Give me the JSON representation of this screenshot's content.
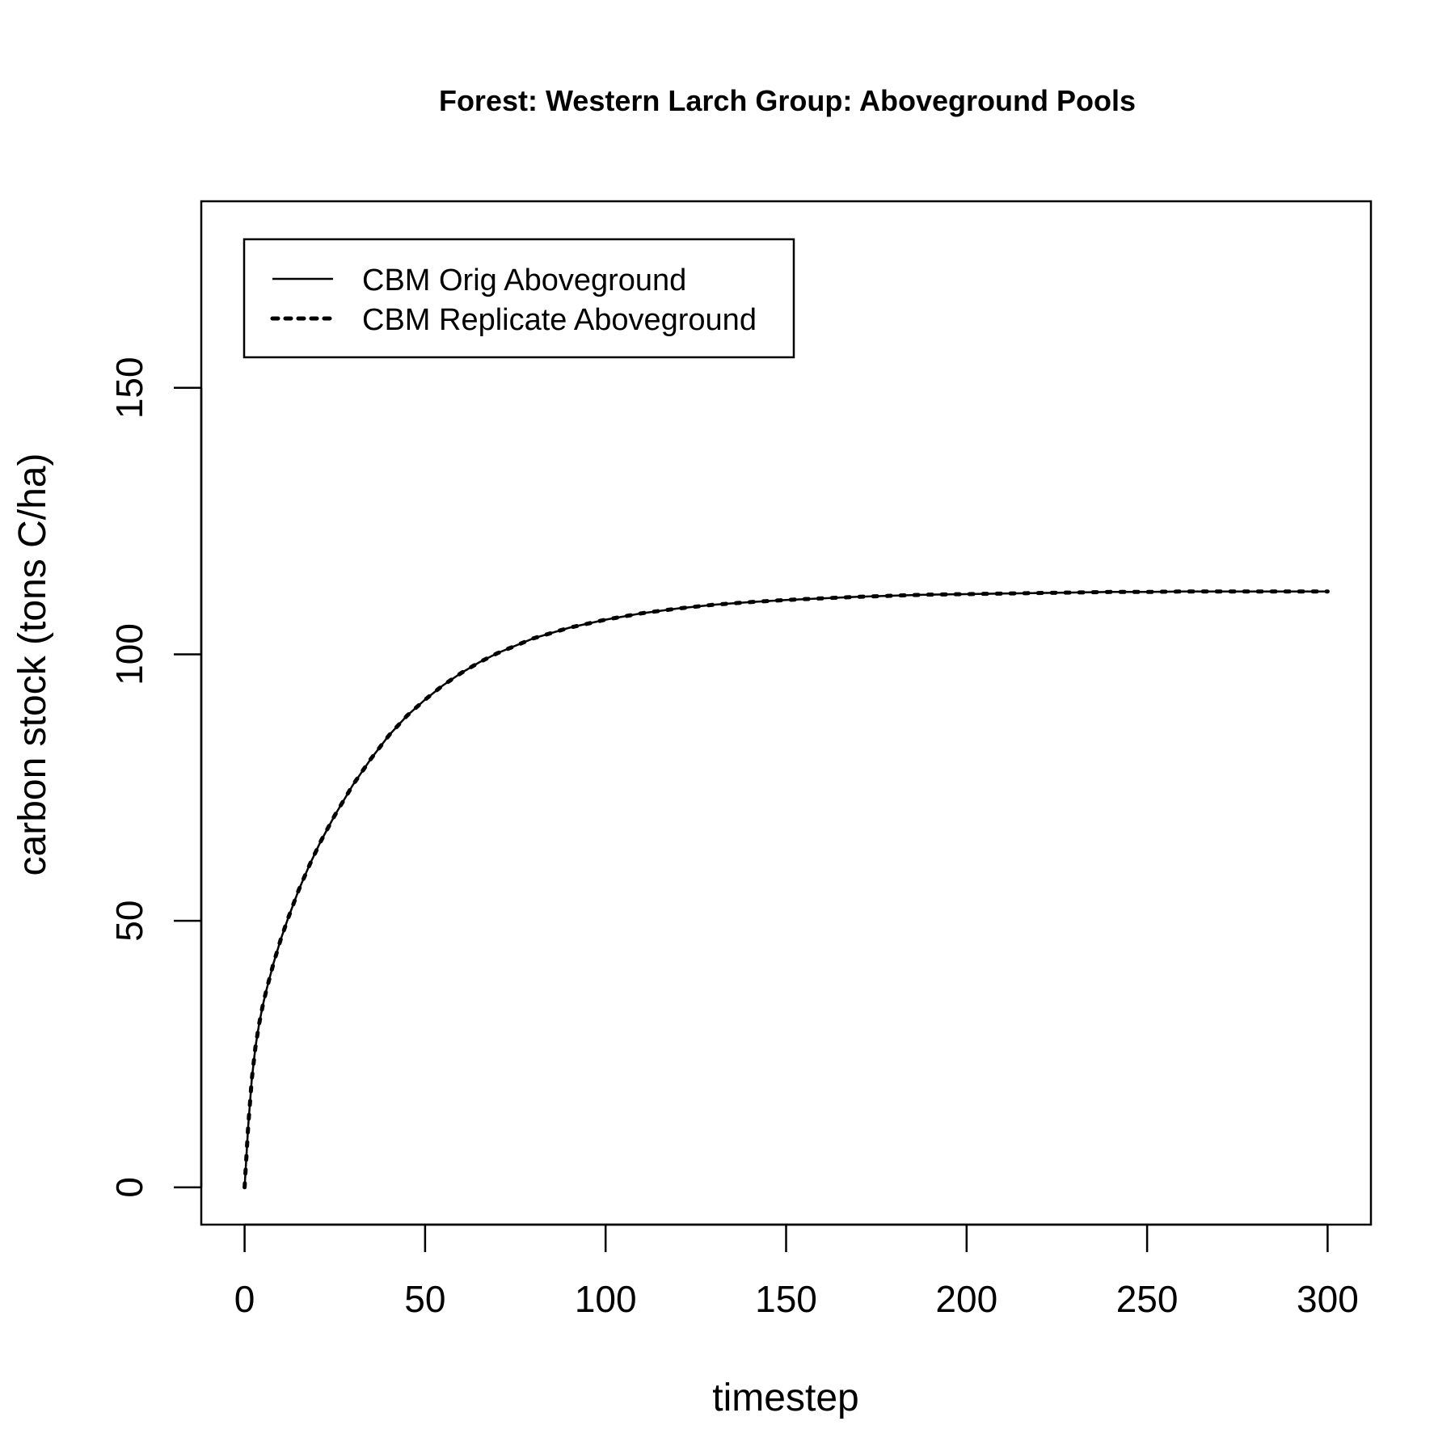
{
  "chart_data": {
    "type": "line",
    "title": "Forest: Western Larch Group: Aboveground Pools",
    "xlabel": "timestep",
    "ylabel": "carbon stock (tons C/ha)",
    "xlim": [
      -12,
      312
    ],
    "ylim": [
      -7,
      185
    ],
    "xticks": [
      0,
      50,
      100,
      150,
      200,
      250,
      300
    ],
    "yticks": [
      0,
      50,
      100,
      150
    ],
    "grid": false,
    "legend_position": "top-left",
    "x": [
      0,
      1,
      2,
      3,
      4,
      5,
      6,
      8,
      10,
      12,
      15,
      18,
      21,
      25,
      30,
      35,
      40,
      45,
      50,
      55,
      60,
      65,
      70,
      80,
      90,
      100,
      110,
      120,
      130,
      140,
      150,
      160,
      170,
      180,
      190,
      200,
      210,
      220,
      230,
      240,
      250,
      260,
      270,
      280,
      290,
      300
    ],
    "series": [
      {
        "name": "CBM Orig Aboveground",
        "line_style": "solid",
        "color": "#000000",
        "values": [
          0,
          11.6,
          20.3,
          26.3,
          30.6,
          34.0,
          36.9,
          42.0,
          46.5,
          50.4,
          55.8,
          60.5,
          64.8,
          69.8,
          75.5,
          80.4,
          84.8,
          88.5,
          91.5,
          94.2,
          96.5,
          98.5,
          100.2,
          103.0,
          105.0,
          106.5,
          107.7,
          108.6,
          109.3,
          109.8,
          110.2,
          110.5,
          110.8,
          111.0,
          111.2,
          111.3,
          111.4,
          111.5,
          111.6,
          111.7,
          111.7,
          111.8,
          111.8,
          111.8,
          111.8,
          111.8
        ]
      },
      {
        "name": "CBM Replicate Aboveground",
        "line_style": "dotted",
        "color": "#000000",
        "values": [
          0,
          11.6,
          20.3,
          26.3,
          30.6,
          34.0,
          36.9,
          42.0,
          46.5,
          50.4,
          55.8,
          60.5,
          64.8,
          69.8,
          75.5,
          80.4,
          84.8,
          88.5,
          91.5,
          94.2,
          96.5,
          98.5,
          100.2,
          103.0,
          105.0,
          106.5,
          107.7,
          108.6,
          109.3,
          109.8,
          110.2,
          110.5,
          110.8,
          111.0,
          111.2,
          111.3,
          111.4,
          111.5,
          111.6,
          111.7,
          111.7,
          111.8,
          111.8,
          111.8,
          111.8,
          111.8
        ]
      }
    ]
  }
}
